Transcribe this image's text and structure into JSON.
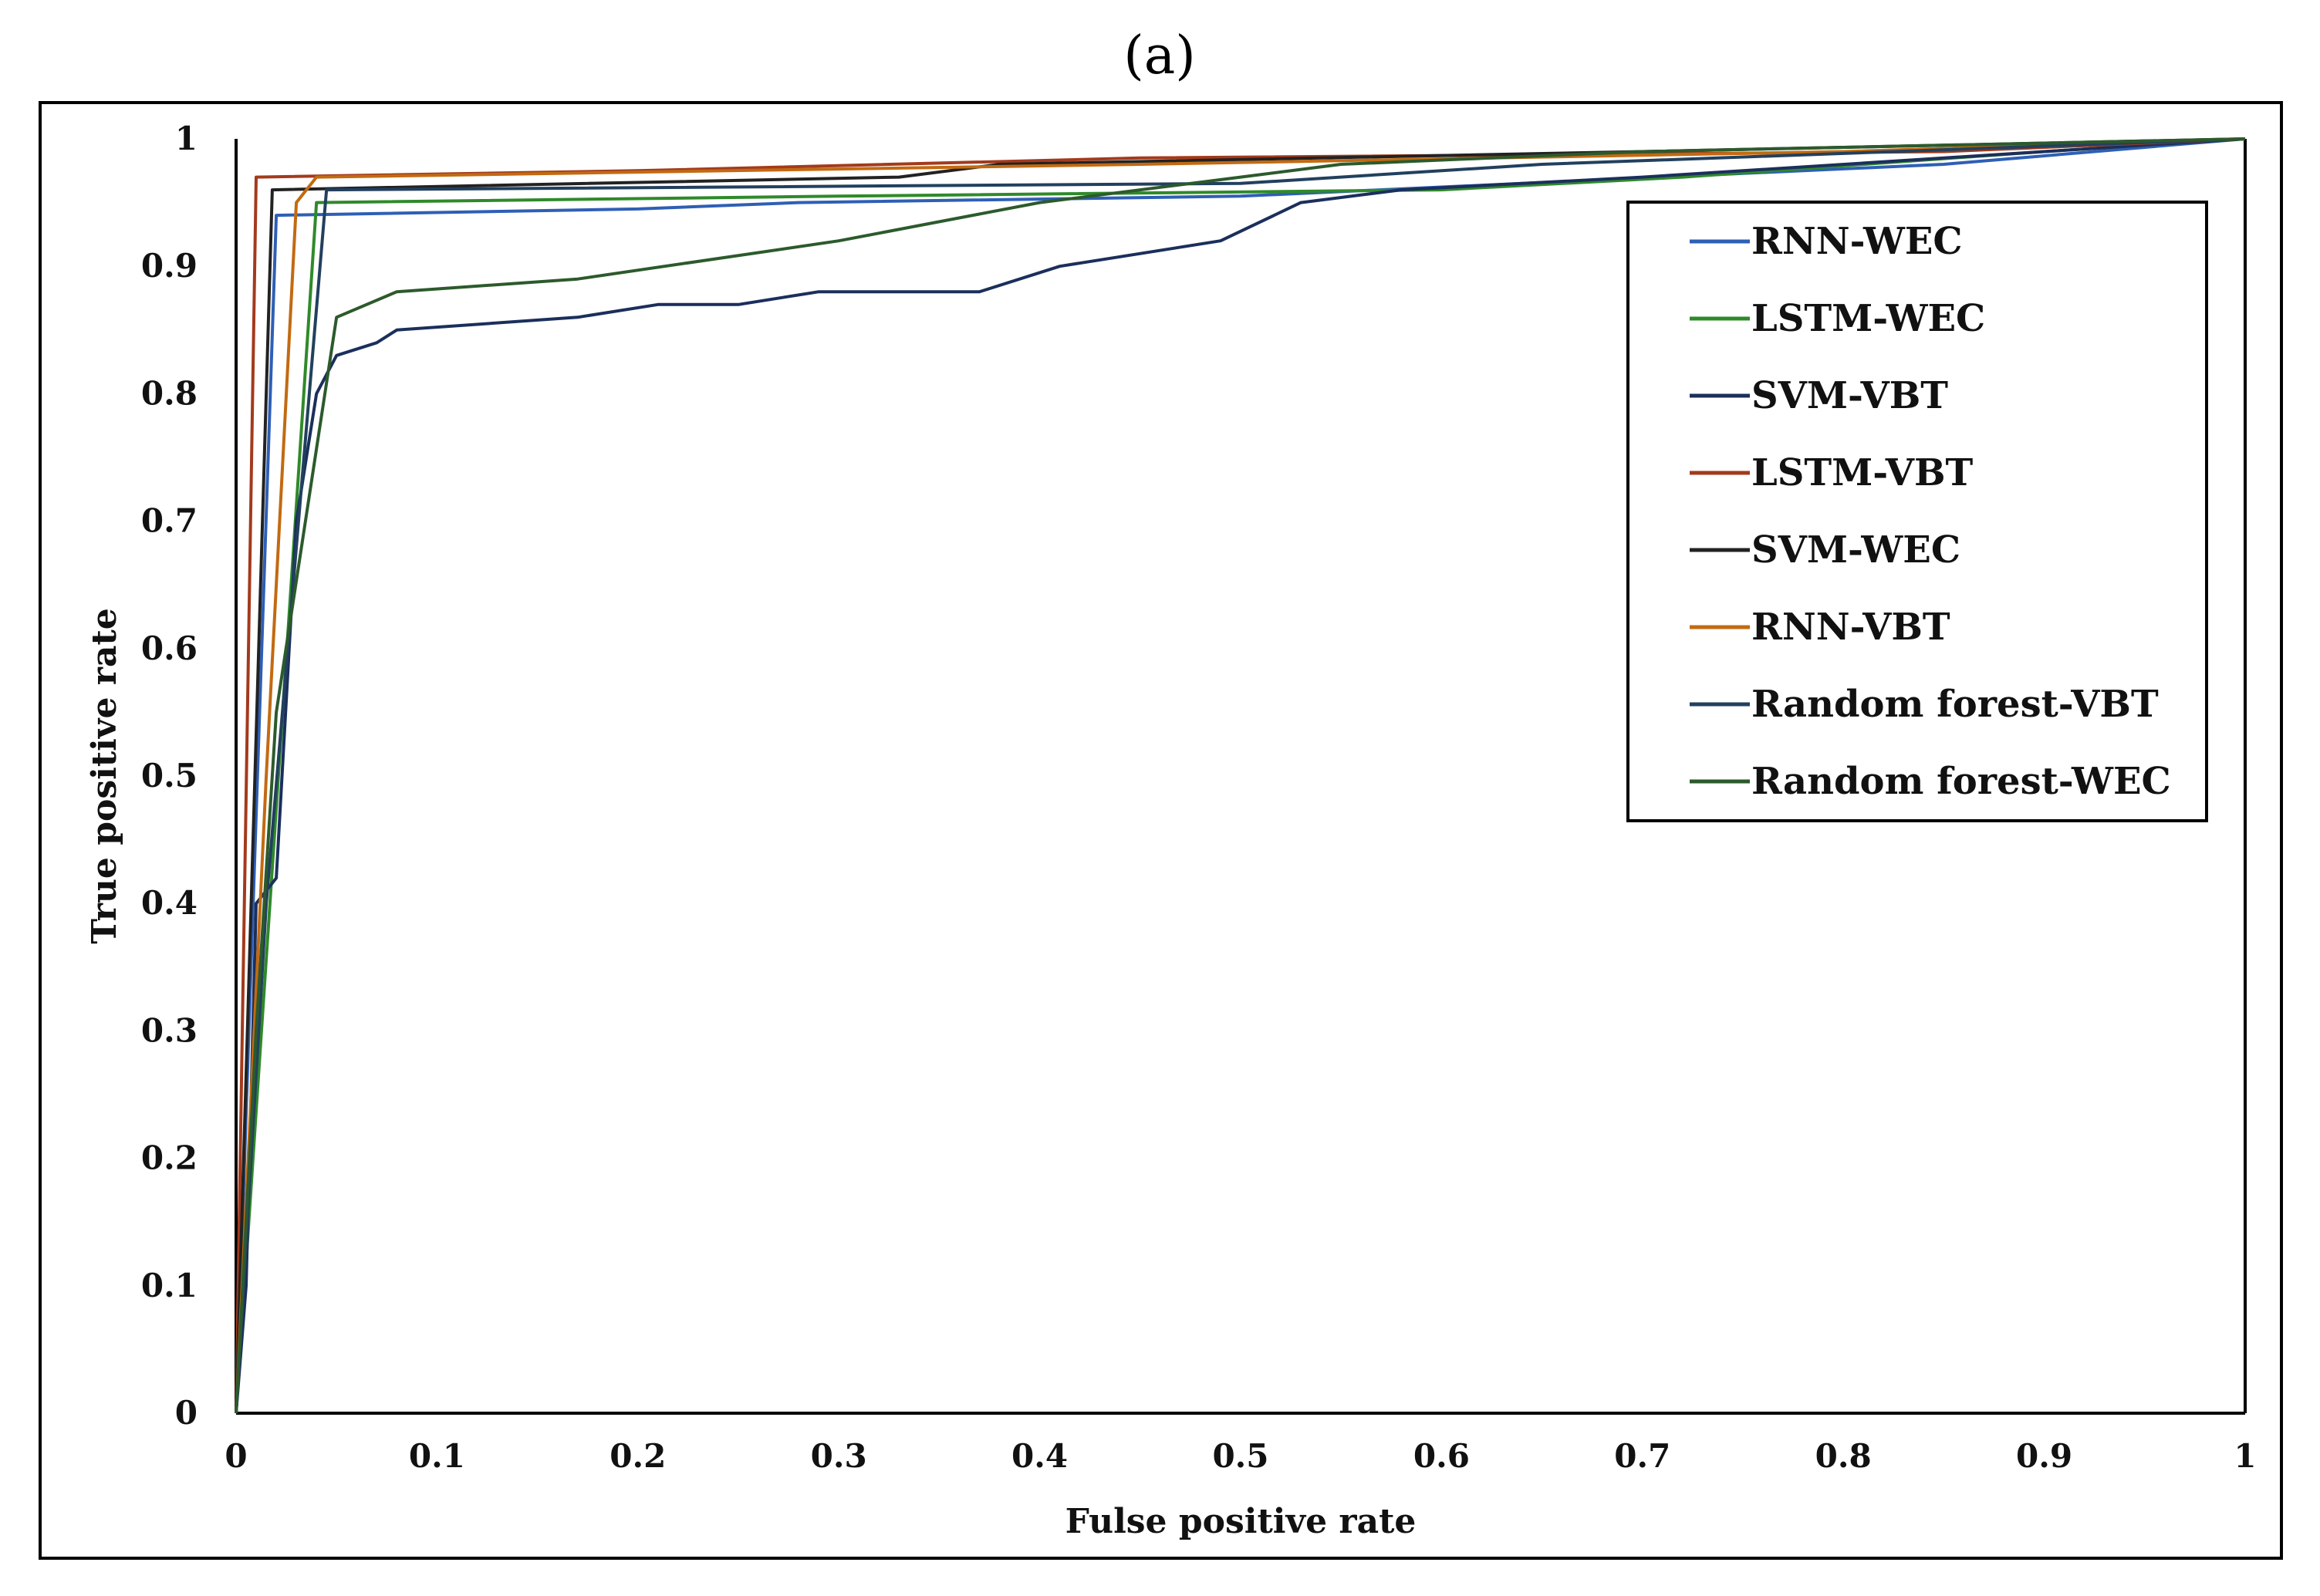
{
  "chart_data": {
    "type": "line",
    "panel_label": "(a)",
    "title": "",
    "xlabel": "Fulse positive rate",
    "ylabel": "True positive rate",
    "xlim": [
      0,
      1
    ],
    "ylim": [
      0,
      1
    ],
    "x_ticks": [
      "0",
      "0.1",
      "0.2",
      "0.3",
      "0.4",
      "0.5",
      "0.6",
      "0.7",
      "0.8",
      "0.9",
      "1"
    ],
    "y_ticks": [
      "0",
      "0.1",
      "0.2",
      "0.3",
      "0.4",
      "0.5",
      "0.6",
      "0.7",
      "0.8",
      "0.9",
      "1"
    ],
    "grid": false,
    "legend_position": "top-right",
    "series": [
      {
        "name": "RNN-WEC",
        "color": "#2e5fb5",
        "points": [
          [
            0,
            0
          ],
          [
            0.02,
            0.94
          ],
          [
            0.2,
            0.945
          ],
          [
            0.28,
            0.95
          ],
          [
            0.5,
            0.955
          ],
          [
            0.85,
            0.98
          ],
          [
            1,
            1
          ]
        ]
      },
      {
        "name": "LSTM-WEC",
        "color": "#2f8a2a",
        "points": [
          [
            0,
            0
          ],
          [
            0.04,
            0.95
          ],
          [
            0.3,
            0.955
          ],
          [
            0.6,
            0.96
          ],
          [
            0.72,
            0.97
          ],
          [
            0.9,
            0.99
          ],
          [
            1,
            1
          ]
        ]
      },
      {
        "name": "SVM-VBT",
        "color": "#1b2f5c",
        "points": [
          [
            0,
            0
          ],
          [
            0.005,
            0.1
          ],
          [
            0.01,
            0.4
          ],
          [
            0.02,
            0.42
          ],
          [
            0.03,
            0.7
          ],
          [
            0.04,
            0.8
          ],
          [
            0.05,
            0.83
          ],
          [
            0.07,
            0.84
          ],
          [
            0.08,
            0.85
          ],
          [
            0.17,
            0.86
          ],
          [
            0.21,
            0.87
          ],
          [
            0.25,
            0.87
          ],
          [
            0.29,
            0.88
          ],
          [
            0.37,
            0.88
          ],
          [
            0.41,
            0.9
          ],
          [
            0.49,
            0.92
          ],
          [
            0.53,
            0.95
          ],
          [
            0.58,
            0.96
          ],
          [
            0.7,
            0.97
          ],
          [
            0.9,
            0.99
          ],
          [
            1,
            1
          ]
        ]
      },
      {
        "name": "LSTM-VBT",
        "color": "#a33a1c",
        "points": [
          [
            0,
            0
          ],
          [
            0.01,
            0.97
          ],
          [
            0.2,
            0.975
          ],
          [
            0.45,
            0.985
          ],
          [
            0.85,
            0.99
          ],
          [
            1,
            1
          ]
        ]
      },
      {
        "name": "SVM-WEC",
        "color": "#222222",
        "points": [
          [
            0,
            0
          ],
          [
            0.018,
            0.96
          ],
          [
            0.33,
            0.97
          ],
          [
            0.38,
            0.98
          ],
          [
            0.7,
            0.99
          ],
          [
            1,
            1
          ]
        ]
      },
      {
        "name": "RNN-VBT",
        "color": "#c26a12",
        "points": [
          [
            0,
            0
          ],
          [
            0.015,
            0.5
          ],
          [
            0.03,
            0.95
          ],
          [
            0.04,
            0.97
          ],
          [
            0.45,
            0.98
          ],
          [
            0.8,
            0.99
          ],
          [
            1,
            1
          ]
        ]
      },
      {
        "name": "Random forest-VBT",
        "color": "#22405e",
        "points": [
          [
            0,
            0
          ],
          [
            0.015,
            0.4
          ],
          [
            0.045,
            0.96
          ],
          [
            0.5,
            0.965
          ],
          [
            0.65,
            0.98
          ],
          [
            1,
            1
          ]
        ]
      },
      {
        "name": "Random forest-WEC",
        "color": "#2c5a2c",
        "points": [
          [
            0,
            0
          ],
          [
            0.01,
            0.3
          ],
          [
            0.02,
            0.55
          ],
          [
            0.05,
            0.86
          ],
          [
            0.08,
            0.88
          ],
          [
            0.17,
            0.89
          ],
          [
            0.3,
            0.92
          ],
          [
            0.4,
            0.95
          ],
          [
            0.5,
            0.97
          ],
          [
            0.55,
            0.98
          ],
          [
            0.7,
            0.99
          ],
          [
            1,
            1
          ]
        ]
      }
    ]
  }
}
